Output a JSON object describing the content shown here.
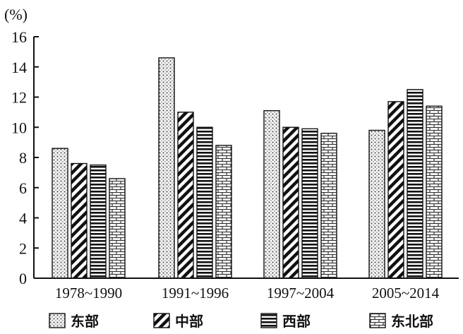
{
  "chart_data": {
    "type": "bar",
    "ylabel": "(%)",
    "ylim": [
      0,
      16
    ],
    "yticks": [
      "0",
      "2",
      "4",
      "6",
      "8",
      "10",
      "12",
      "14",
      "16"
    ],
    "grid": false,
    "legend_position": "bottom",
    "categories": [
      "1978~1990",
      "1991~1996",
      "1997~2004",
      "2005~2014"
    ],
    "series": [
      {
        "name": "东部",
        "pattern": "dots",
        "values": [
          8.6,
          14.6,
          11.1,
          9.8
        ]
      },
      {
        "name": "中部",
        "pattern": "diagonal",
        "values": [
          7.6,
          11.0,
          10.0,
          11.7
        ]
      },
      {
        "name": "西部",
        "pattern": "horizontal",
        "values": [
          7.5,
          10.0,
          9.9,
          12.5
        ]
      },
      {
        "name": "东北部",
        "pattern": "brick",
        "values": [
          6.6,
          8.8,
          9.6,
          11.4
        ]
      }
    ]
  }
}
